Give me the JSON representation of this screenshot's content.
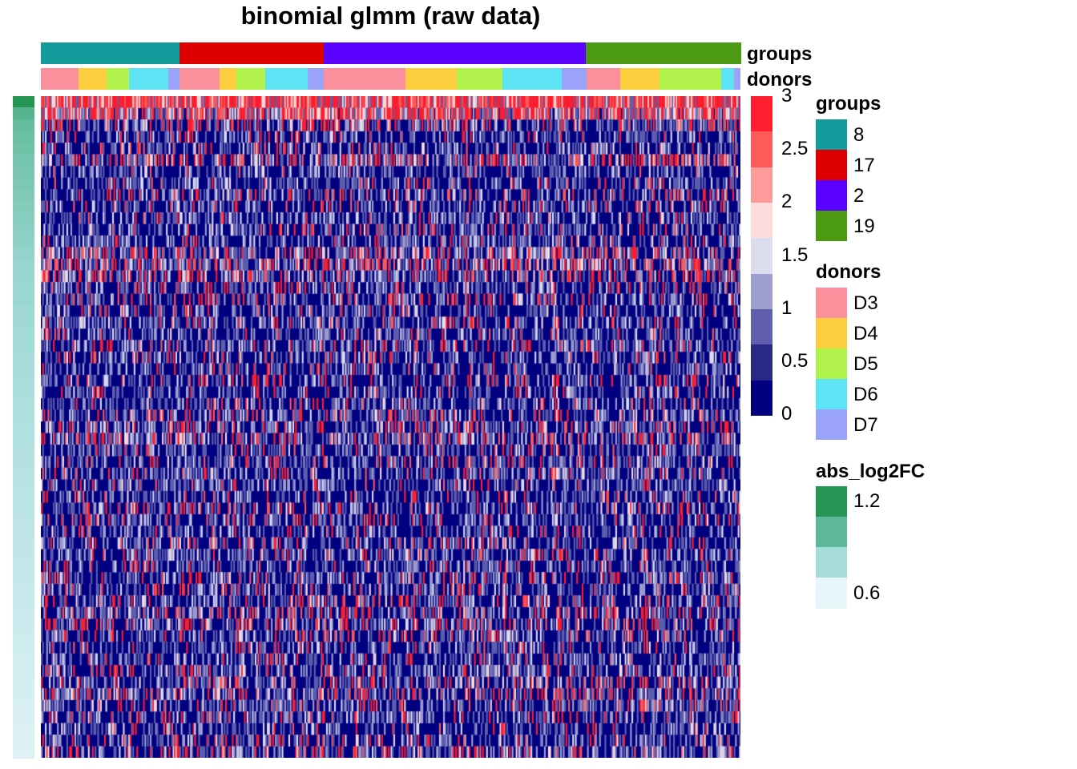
{
  "chart_data": {
    "type": "heatmap",
    "title": "binomial glmm (raw data)",
    "value_range": [
      0,
      3
    ],
    "color_scale": {
      "breaks": [
        "3",
        "2.5",
        "2",
        "1.5",
        "1",
        "0.5",
        "0"
      ],
      "colors": [
        "#000080",
        "#2a2a86",
        "#5f5fae",
        "#9f9fcf",
        "#dcdcef",
        "#ffdcdc",
        "#ff9a9a",
        "#ff5a5a",
        "#ff1f2e"
      ]
    },
    "column_annotations": {
      "groups": {
        "label": "groups",
        "legend_title": "groups",
        "levels": [
          {
            "name": "8",
            "color": "#139a9a"
          },
          {
            "name": "17",
            "color": "#de0000"
          },
          {
            "name": "2",
            "color": "#5a00ff"
          },
          {
            "name": "19",
            "color": "#4c9a13"
          }
        ],
        "sequence": [
          {
            "level": "8",
            "fraction": 0.198
          },
          {
            "level": "17",
            "fraction": 0.206
          },
          {
            "level": "2",
            "fraction": 0.375
          },
          {
            "level": "19",
            "fraction": 0.221
          }
        ]
      },
      "donors": {
        "label": "donors",
        "legend_title": "donors",
        "levels": [
          {
            "name": "D3",
            "color": "#f9909c"
          },
          {
            "name": "D4",
            "color": "#fccd3c"
          },
          {
            "name": "D5",
            "color": "#b2f24c"
          },
          {
            "name": "D6",
            "color": "#5de3f4"
          },
          {
            "name": "D7",
            "color": "#9aa2fa"
          }
        ],
        "sequence": [
          {
            "level": "D3",
            "fraction": 0.054
          },
          {
            "level": "D4",
            "fraction": 0.04
          },
          {
            "level": "D5",
            "fraction": 0.032
          },
          {
            "level": "D6",
            "fraction": 0.056
          },
          {
            "level": "D7",
            "fraction": 0.016
          },
          {
            "level": "D3",
            "fraction": 0.057
          },
          {
            "level": "D4",
            "fraction": 0.025
          },
          {
            "level": "D5",
            "fraction": 0.041
          },
          {
            "level": "D6",
            "fraction": 0.06
          },
          {
            "level": "D7",
            "fraction": 0.023
          },
          {
            "level": "D3",
            "fraction": 0.117
          },
          {
            "level": "D4",
            "fraction": 0.073
          },
          {
            "level": "D5",
            "fraction": 0.066
          },
          {
            "level": "D6",
            "fraction": 0.084
          },
          {
            "level": "D7",
            "fraction": 0.036
          },
          {
            "level": "D3",
            "fraction": 0.048
          },
          {
            "level": "D4",
            "fraction": 0.056
          },
          {
            "level": "D5",
            "fraction": 0.088
          },
          {
            "level": "D6",
            "fraction": 0.019
          },
          {
            "level": "D7",
            "fraction": 0.008
          }
        ]
      }
    },
    "row_annotation": {
      "name": "abs_log2FC",
      "legend_title": "abs_log2FC",
      "legend_labels": [
        "1.2",
        "0.6"
      ],
      "legend_colors": [
        "#269452",
        "#5cb896",
        "#a6dcdc",
        "#e8f6fa"
      ],
      "range": [
        0.6,
        1.2
      ],
      "values": [
        1.25,
        1.02,
        0.98,
        0.96,
        0.95,
        0.93,
        0.92,
        0.91,
        0.9,
        0.89,
        0.88,
        0.87,
        0.86,
        0.85,
        0.84,
        0.84,
        0.83,
        0.83,
        0.82,
        0.82,
        0.81,
        0.81,
        0.8,
        0.8,
        0.79,
        0.79,
        0.78,
        0.78,
        0.77,
        0.77,
        0.76,
        0.76,
        0.75,
        0.75,
        0.74,
        0.74,
        0.73,
        0.73,
        0.72,
        0.72,
        0.71,
        0.71,
        0.7,
        0.7,
        0.69,
        0.69,
        0.68,
        0.68,
        0.67,
        0.67,
        0.66,
        0.66,
        0.65,
        0.65,
        0.64,
        0.64,
        0.63
      ]
    },
    "n_rows": 57,
    "n_cols": 520,
    "row_red_density": [
      0.85,
      0.6,
      0.2,
      0.08,
      0.1,
      0.3,
      0.05,
      0.06,
      0.12,
      0.08,
      0.05,
      0.1,
      0.07,
      0.25,
      0.35,
      0.22,
      0.1,
      0.15,
      0.08,
      0.1,
      0.06,
      0.12,
      0.09,
      0.07,
      0.1,
      0.06,
      0.08,
      0.13,
      0.18,
      0.22,
      0.09,
      0.12,
      0.1,
      0.07,
      0.1,
      0.14,
      0.08,
      0.06,
      0.12,
      0.1,
      0.08,
      0.12,
      0.1,
      0.13,
      0.2,
      0.18,
      0.12,
      0.08,
      0.1,
      0.13,
      0.15,
      0.18,
      0.12,
      0.1,
      0.08,
      0.12,
      0.15
    ]
  }
}
